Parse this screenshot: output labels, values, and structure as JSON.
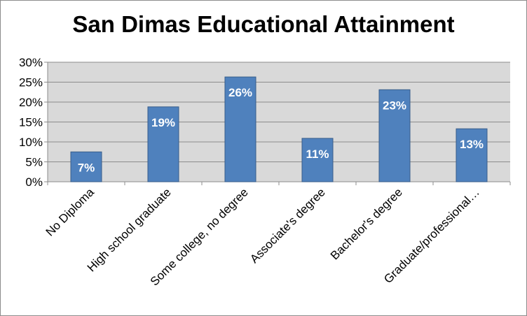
{
  "chart_data": {
    "type": "bar",
    "title": "San Dimas Educational Attainment",
    "categories": [
      "No Diploma",
      "High school graduate",
      "Some college, no degree",
      "Associate's degree",
      "Bachelor's degree",
      "Graduate/professional…"
    ],
    "values": [
      7.5,
      18.8,
      26.3,
      10.9,
      23.1,
      13.3
    ],
    "data_labels": [
      "7%",
      "19%",
      "26%",
      "11%",
      "23%",
      "13%"
    ],
    "ylim": [
      0,
      30
    ],
    "yticks": [
      0,
      5,
      10,
      15,
      20,
      25,
      30
    ],
    "ytick_labels": [
      "0%",
      "5%",
      "10%",
      "15%",
      "20%",
      "25%",
      "30%"
    ],
    "xlabel": "",
    "ylabel": "",
    "grid": true,
    "legend": "none",
    "colors": {
      "bar": "#4f81bd",
      "bar_border": "#385d8a",
      "plot_bg": "#d9d9d9",
      "grid": "#8c8c8c",
      "data_label": "#ffffff"
    }
  }
}
